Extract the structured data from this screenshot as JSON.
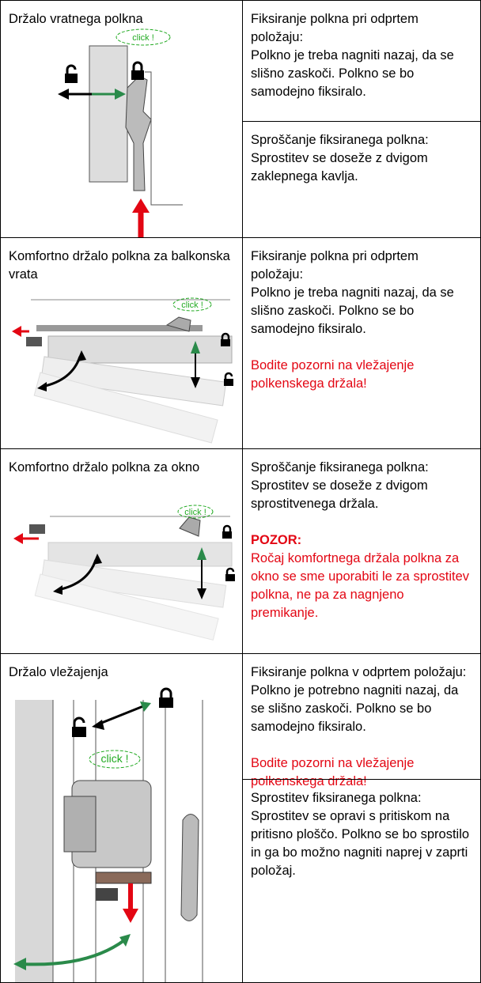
{
  "rows": [
    {
      "title": "Držalo vratnega polkna",
      "click": "click !",
      "cells": [
        {
          "heading": "Fiksiranje polkna pri odprtem položaju:",
          "body": "Polkno je treba nagniti nazaj, da se slišno zaskoči. Polkno se bo samodejno fiksiralo."
        },
        {
          "heading": "Sproščanje fiksiranega polkna:",
          "body": "Sprostitev se doseže z dvigom zaklepnega kavlja."
        }
      ]
    },
    {
      "title": "Komfortno držalo polkna za balkonska vrata",
      "click": "click !",
      "cells": [
        {
          "heading": "Fiksiranje polkna pri odprtem položaju:",
          "body": "Polkno je treba nagniti nazaj, da se slišno zaskoči. Polkno se bo samodejno fiksiralo.",
          "note": "Bodite pozorni na vležajenje polkenskega držala!"
        }
      ]
    },
    {
      "title": "Komfortno držalo polkna za okno",
      "click": "click !",
      "cells": [
        {
          "heading": "Sproščanje fiksiranega polkna:",
          "body": "Sprostitev se doseže z dvigom sprostitvenega držala.",
          "warning": "POZOR:",
          "note": "Ročaj komfortnega držala polkna za okno se sme uporabiti le za sprostitev polkna, ne pa za nagnjeno premikanje."
        }
      ]
    },
    {
      "title": "Držalo vležajenja",
      "click": "click !",
      "cells": [
        {
          "heading": "Fiksiranje polkna v odprtem položaju:",
          "body": "Polkno je potrebno nagniti nazaj, da se slišno zaskoči. Polkno se bo samodejno fiksiralo.",
          "note": "Bodite pozorni na vležajenje polkenskega držala!"
        },
        {
          "heading": "Sprostitev fiksiranega polkna:",
          "body": "Sprostitev se opravi s pritiskom na pritisno ploščo. Polkno se bo sprostilo in ga bo možno nagniti naprej v zaprti položaj."
        }
      ]
    }
  ]
}
